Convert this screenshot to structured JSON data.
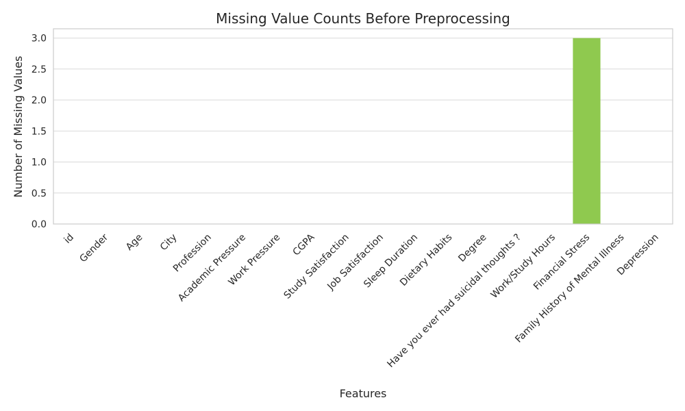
{
  "chart_data": {
    "type": "bar",
    "title": "Missing Value Counts Before Preprocessing",
    "xlabel": "Features",
    "ylabel": "Number of Missing Values",
    "categories": [
      "id",
      "Gender",
      "Age",
      "City",
      "Profession",
      "Academic Pressure",
      "Work Pressure",
      "CGPA",
      "Study Satisfaction",
      "Job Satisfaction",
      "Sleep Duration",
      "Dietary Habits",
      "Degree",
      "Have you ever had suicidal thoughts ?",
      "Work/Study Hours",
      "Financial Stress",
      "Family History of Mental Illness",
      "Depression"
    ],
    "values": [
      0,
      0,
      0,
      0,
      0,
      0,
      0,
      0,
      0,
      0,
      0,
      0,
      0,
      0,
      0,
      3,
      0,
      0
    ],
    "ylim": [
      0,
      3.15
    ],
    "yticks": [
      "0.0",
      "0.5",
      "1.0",
      "1.5",
      "2.0",
      "2.5",
      "3.0"
    ],
    "grid": true,
    "bar_color": "#8fc94f",
    "grid_color": "#d9d9d9",
    "spine_color": "#cccccc"
  }
}
